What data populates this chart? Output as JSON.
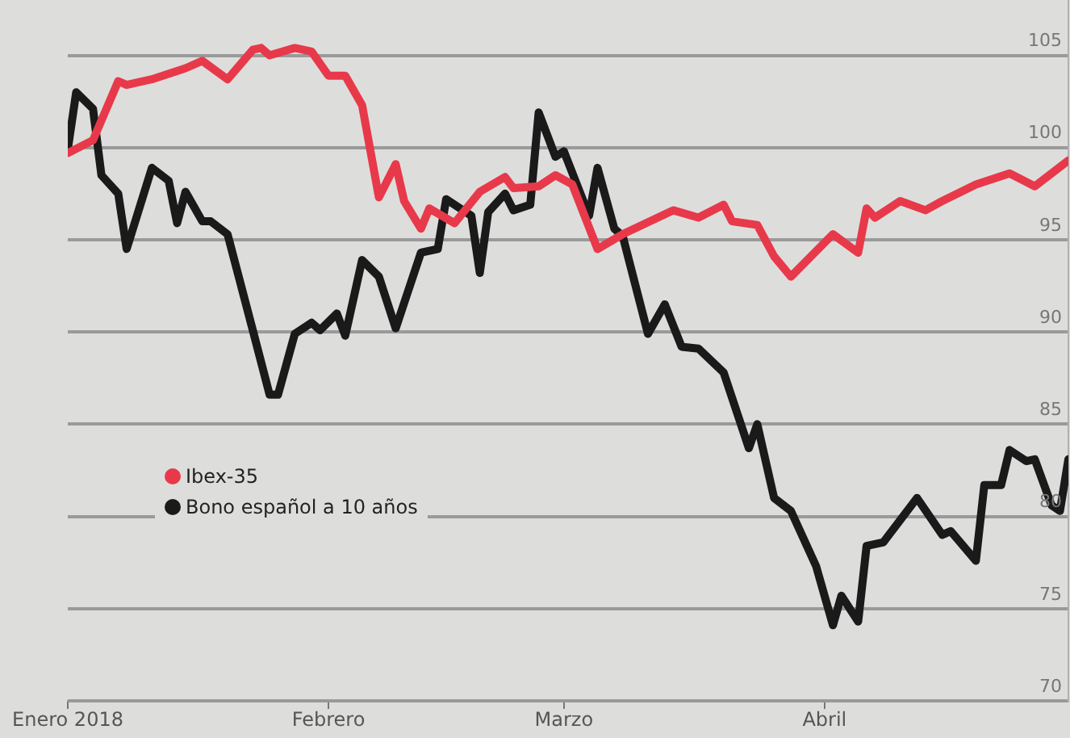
{
  "chart_data": {
    "type": "line",
    "xlim": [
      "2018-01-01",
      "2018-04-30"
    ],
    "xticks": [
      {
        "value": "2018-01-01",
        "label": "Enero 2018"
      },
      {
        "value": "2018-02-01",
        "label": "Febrero"
      },
      {
        "value": "2018-03-01",
        "label": "Marzo"
      },
      {
        "value": "2018-04-01",
        "label": "Abril"
      }
    ],
    "ylim": [
      70,
      108
    ],
    "yticks": [
      70,
      75,
      80,
      85,
      90,
      95,
      100,
      105
    ],
    "grid": "y",
    "legend": "center left",
    "marker": "none",
    "line_style": "solid",
    "series": [
      {
        "name": "Ibex-35",
        "color": "#e8394a",
        "x": [
          "2018-01-01",
          "2018-01-04",
          "2018-01-07",
          "2018-01-08",
          "2018-01-11",
          "2018-01-15",
          "2018-01-17",
          "2018-01-20",
          "2018-01-23",
          "2018-01-24",
          "2018-01-25",
          "2018-01-28",
          "2018-01-30",
          "2018-02-01",
          "2018-02-03",
          "2018-02-05",
          "2018-02-07",
          "2018-02-09",
          "2018-02-10",
          "2018-02-12",
          "2018-02-13",
          "2018-02-16",
          "2018-02-19",
          "2018-02-22",
          "2018-02-23",
          "2018-02-26",
          "2018-02-28",
          "2018-03-02",
          "2018-03-05",
          "2018-03-08",
          "2018-03-14",
          "2018-03-17",
          "2018-03-20",
          "2018-03-21",
          "2018-03-24",
          "2018-03-26",
          "2018-03-28",
          "2018-04-02",
          "2018-04-05",
          "2018-04-06",
          "2018-04-07",
          "2018-04-10",
          "2018-04-13",
          "2018-04-15",
          "2018-04-19",
          "2018-04-23",
          "2018-04-26",
          "2018-04-28",
          "2018-04-30"
        ],
        "values": [
          99.7,
          100.4,
          103.6,
          103.4,
          103.7,
          104.3,
          104.7,
          103.7,
          105.3,
          105.4,
          105,
          105.4,
          105.2,
          103.9,
          103.9,
          102.3,
          97.3,
          99.1,
          97.1,
          95.6,
          96.7,
          95.9,
          97.6,
          98.4,
          97.8,
          97.9,
          98.5,
          98,
          94.5,
          95.3,
          96.6,
          96.2,
          96.9,
          96,
          95.8,
          94.1,
          93,
          95.3,
          94.3,
          96.7,
          96.2,
          97.1,
          96.6,
          97.1,
          98,
          98.6,
          97.9,
          98.6,
          99.3
        ]
      },
      {
        "name": "Bono español a 10 años",
        "color": "#1a1a1a",
        "x": [
          "2018-01-01",
          "2018-01-02",
          "2018-01-04",
          "2018-01-05",
          "2018-01-07",
          "2018-01-08",
          "2018-01-11",
          "2018-01-13",
          "2018-01-14",
          "2018-01-15",
          "2018-01-17",
          "2018-01-18",
          "2018-01-20",
          "2018-01-23",
          "2018-01-25",
          "2018-01-26",
          "2018-01-28",
          "2018-01-30",
          "2018-01-31",
          "2018-02-02",
          "2018-02-03",
          "2018-02-05",
          "2018-02-07",
          "2018-02-09",
          "2018-02-12",
          "2018-02-14",
          "2018-02-15",
          "2018-02-18",
          "2018-02-19",
          "2018-02-20",
          "2018-02-22",
          "2018-02-23",
          "2018-02-25",
          "2018-02-26",
          "2018-02-28",
          "2018-03-01",
          "2018-03-04",
          "2018-03-05",
          "2018-03-07",
          "2018-03-08",
          "2018-03-11",
          "2018-03-13",
          "2018-03-15",
          "2018-03-17",
          "2018-03-20",
          "2018-03-23",
          "2018-03-24",
          "2018-03-26",
          "2018-03-28",
          "2018-03-31",
          "2018-04-02",
          "2018-04-03",
          "2018-04-05",
          "2018-04-06",
          "2018-04-08",
          "2018-04-12",
          "2018-04-15",
          "2018-04-16",
          "2018-04-19",
          "2018-04-20",
          "2018-04-22",
          "2018-04-23",
          "2018-04-25",
          "2018-04-26",
          "2018-04-28",
          "2018-04-29",
          "2018-04-30"
        ],
        "values": [
          99.9,
          103,
          102.1,
          98.5,
          97.5,
          94.5,
          98.9,
          98.2,
          95.9,
          97.6,
          96,
          96,
          95.3,
          90.1,
          86.6,
          86.6,
          89.9,
          90.5,
          90.1,
          91,
          89.8,
          93.9,
          93,
          90.2,
          94.3,
          94.5,
          97.2,
          96.3,
          93.2,
          96.5,
          97.5,
          96.6,
          96.9,
          101.9,
          99.5,
          99.8,
          96.3,
          98.9,
          95.6,
          95.2,
          89.9,
          91.5,
          89.2,
          89.1,
          87.8,
          83.7,
          85,
          81,
          80.3,
          77.3,
          74.1,
          75.7,
          74.3,
          78.4,
          78.6,
          81,
          79,
          79.2,
          77.6,
          81.7,
          81.7,
          83.6,
          83,
          83.1,
          80.6,
          80.3,
          83.1
        ]
      }
    ]
  }
}
